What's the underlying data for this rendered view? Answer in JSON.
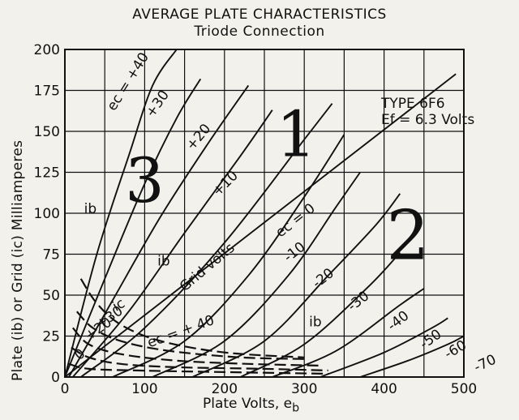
{
  "chart_data": {
    "type": "line",
    "title": "AVERAGE PLATE CHARACTERISTICS",
    "subtitle": "Triode Connection",
    "xlabel": "Plate Volts, e",
    "xlabel_sub": "b",
    "ylabel": "Plate (i ) or Grid (i ) Milliamperes",
    "ylabel_full": "Plate (ib) or Grid (ic) Milliamperes",
    "xlim": [
      0,
      500
    ],
    "ylim": [
      0,
      200
    ],
    "xticks": [
      "0",
      "100",
      "200",
      "300",
      "400",
      "500"
    ],
    "yticks": [
      "0",
      "25",
      "50",
      "75",
      "100",
      "125",
      "150",
      "175",
      "200"
    ],
    "grid": true,
    "tube_type": "TYPE 6F6",
    "filament": "Ef = 6.3 Volts",
    "plate_curves": [
      {
        "label": "ec = +40",
        "points": [
          [
            0,
            0
          ],
          [
            40,
            75
          ],
          [
            80,
            135
          ],
          [
            110,
            178
          ],
          [
            140,
            200
          ]
        ]
      },
      {
        "label": "+30",
        "points": [
          [
            0,
            0
          ],
          [
            50,
            60
          ],
          [
            100,
            118
          ],
          [
            140,
            158
          ],
          [
            170,
            182
          ]
        ]
      },
      {
        "label": "+20",
        "points": [
          [
            5,
            0
          ],
          [
            60,
            47
          ],
          [
            120,
            98
          ],
          [
            180,
            143
          ],
          [
            230,
            178
          ]
        ]
      },
      {
        "label": "+10",
        "points": [
          [
            10,
            0
          ],
          [
            80,
            40
          ],
          [
            150,
            88
          ],
          [
            220,
            135
          ],
          [
            260,
            163
          ]
        ]
      },
      {
        "label": "Grid volts ec = 0",
        "points": [
          [
            20,
            0
          ],
          [
            100,
            30
          ],
          [
            200,
            82
          ],
          [
            300,
            145
          ],
          [
            335,
            167
          ]
        ]
      },
      {
        "label": "-10",
        "points": [
          [
            60,
            0
          ],
          [
            150,
            22
          ],
          [
            230,
            62
          ],
          [
            300,
            110
          ],
          [
            350,
            148
          ]
        ]
      },
      {
        "label": "-20",
        "points": [
          [
            110,
            0
          ],
          [
            200,
            22
          ],
          [
            280,
            62
          ],
          [
            340,
            104
          ],
          [
            370,
            125
          ]
        ]
      },
      {
        "label": "-30",
        "points": [
          [
            160,
            0
          ],
          [
            250,
            22
          ],
          [
            330,
            62
          ],
          [
            390,
            93
          ],
          [
            420,
            112
          ]
        ]
      },
      {
        "label": "-40",
        "points": [
          [
            220,
            0
          ],
          [
            300,
            20
          ],
          [
            380,
            55
          ],
          [
            420,
            76
          ]
        ]
      },
      {
        "label": "-50",
        "points": [
          [
            260,
            0
          ],
          [
            340,
            16
          ],
          [
            420,
            44
          ],
          [
            450,
            54
          ]
        ]
      },
      {
        "label": "-60",
        "points": [
          [
            320,
            0
          ],
          [
            400,
            15
          ],
          [
            460,
            30
          ],
          [
            480,
            36
          ]
        ]
      },
      {
        "label": "-70",
        "points": [
          [
            370,
            0
          ],
          [
            430,
            10
          ],
          [
            480,
            20
          ],
          [
            500,
            25
          ]
        ]
      }
    ],
    "load_line": {
      "points": [
        [
          0,
          0
        ],
        [
          490,
          185
        ]
      ]
    },
    "grid_current_curves": [
      {
        "label": "+40",
        "points": [
          [
            20,
            60
          ],
          [
            40,
            45
          ],
          [
            70,
            32
          ],
          [
            120,
            22
          ],
          [
            200,
            15
          ],
          [
            300,
            12
          ]
        ]
      },
      {
        "label": "+30",
        "points": [
          [
            15,
            40
          ],
          [
            35,
            30
          ],
          [
            70,
            22
          ],
          [
            130,
            16
          ],
          [
            220,
            12
          ],
          [
            300,
            11
          ]
        ]
      },
      {
        "label": "+20",
        "points": [
          [
            10,
            30
          ],
          [
            30,
            20
          ],
          [
            70,
            14
          ],
          [
            140,
            10
          ],
          [
            230,
            8
          ],
          [
            320,
            7
          ]
        ]
      },
      {
        "label": "+10",
        "points": [
          [
            8,
            18
          ],
          [
            30,
            12
          ],
          [
            70,
            8
          ],
          [
            140,
            6
          ],
          [
            250,
            5
          ],
          [
            330,
            4
          ]
        ]
      },
      {
        "label": "0",
        "points": [
          [
            5,
            8
          ],
          [
            30,
            5
          ],
          [
            90,
            4
          ],
          [
            200,
            3
          ],
          [
            330,
            2
          ]
        ]
      }
    ],
    "curve_labels": {
      "ec_plus40": "ec = +40",
      "plus30": "+30",
      "plus20": "+20",
      "plus10": "+10",
      "grid_volts": "Grid volts",
      "ec_zero": "ec = 0",
      "minus10": "-10",
      "minus20": "-20",
      "minus30": "-30",
      "minus40": "-40",
      "minus50": "-50",
      "minus60": "-60",
      "minus70": "-70",
      "ib_left": "ib",
      "ib_mid": "ib",
      "ib_right": "ib",
      "ic": "ic",
      "grid_ec_plus40": "ec = + 40",
      "grid_plus30": "+30",
      "grid_plus20": "+20",
      "grid_zero": "0"
    },
    "annotations": {
      "region_1": "1",
      "region_2": "2",
      "region_3": "3"
    }
  }
}
